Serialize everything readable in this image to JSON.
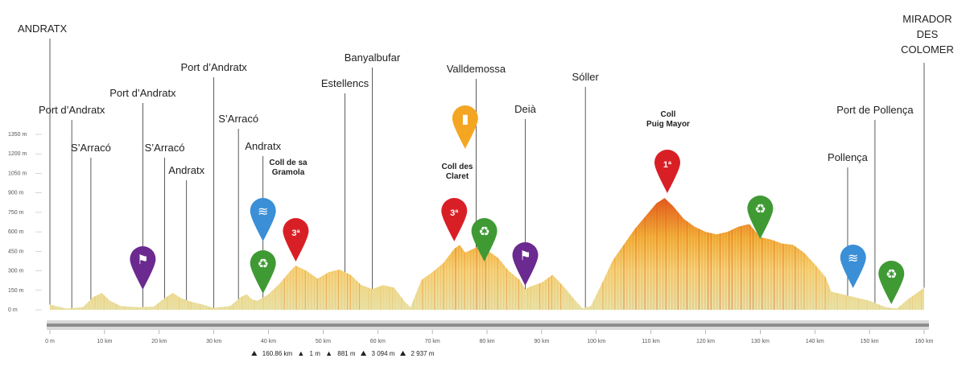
{
  "chart_data": {
    "type": "area",
    "x_unit": "km",
    "y_unit": "m",
    "xlim": [
      0,
      160
    ],
    "ylim": [
      0,
      1350
    ],
    "y_ticks": [
      "0 m",
      "150 m",
      "300 m",
      "450 m",
      "600 m",
      "750 m",
      "900 m",
      "1050 m",
      "1200 m",
      "1350 m"
    ],
    "x_ticks": [
      "0 m",
      "10 km",
      "20 km",
      "30 km",
      "40 km",
      "50 km",
      "60 km",
      "70 km",
      "80 km",
      "90 km",
      "100 km",
      "110 km",
      "120 km",
      "130 km",
      "140 km",
      "150 km",
      "160 km"
    ],
    "profile": [
      [
        0,
        40
      ],
      [
        3,
        10
      ],
      [
        6,
        20
      ],
      [
        8,
        100
      ],
      [
        9.5,
        130
      ],
      [
        11,
        70
      ],
      [
        13,
        30
      ],
      [
        16,
        20
      ],
      [
        19,
        25
      ],
      [
        21,
        90
      ],
      [
        22.5,
        130
      ],
      [
        24,
        90
      ],
      [
        26,
        60
      ],
      [
        28,
        40
      ],
      [
        30,
        15
      ],
      [
        33,
        30
      ],
      [
        35,
        100
      ],
      [
        36,
        120
      ],
      [
        37,
        80
      ],
      [
        38,
        70
      ],
      [
        40,
        120
      ],
      [
        42,
        200
      ],
      [
        44,
        300
      ],
      [
        45,
        340
      ],
      [
        47,
        300
      ],
      [
        49,
        240
      ],
      [
        51,
        290
      ],
      [
        53,
        310
      ],
      [
        55,
        270
      ],
      [
        57,
        190
      ],
      [
        59,
        160
      ],
      [
        61,
        190
      ],
      [
        63,
        170
      ],
      [
        65,
        60
      ],
      [
        66,
        20
      ],
      [
        68,
        230
      ],
      [
        70,
        290
      ],
      [
        72,
        360
      ],
      [
        74,
        470
      ],
      [
        75,
        500
      ],
      [
        76,
        440
      ],
      [
        78,
        480
      ],
      [
        80,
        460
      ],
      [
        82,
        400
      ],
      [
        84,
        300
      ],
      [
        86,
        230
      ],
      [
        87,
        160
      ],
      [
        88,
        180
      ],
      [
        90,
        210
      ],
      [
        92,
        270
      ],
      [
        94,
        180
      ],
      [
        96,
        80
      ],
      [
        97.5,
        10
      ],
      [
        99,
        30
      ],
      [
        101,
        200
      ],
      [
        103,
        380
      ],
      [
        105,
        500
      ],
      [
        107,
        620
      ],
      [
        109,
        720
      ],
      [
        111,
        820
      ],
      [
        112.5,
        860
      ],
      [
        114,
        800
      ],
      [
        116,
        700
      ],
      [
        118,
        640
      ],
      [
        120,
        600
      ],
      [
        122,
        580
      ],
      [
        124,
        600
      ],
      [
        126,
        640
      ],
      [
        128,
        660
      ],
      [
        130,
        560
      ],
      [
        132,
        540
      ],
      [
        134,
        510
      ],
      [
        136,
        500
      ],
      [
        138,
        440
      ],
      [
        140,
        350
      ],
      [
        142,
        250
      ],
      [
        143,
        140
      ],
      [
        145,
        120
      ],
      [
        147,
        100
      ],
      [
        150,
        70
      ],
      [
        153,
        20
      ],
      [
        155,
        10
      ],
      [
        157,
        80
      ],
      [
        160,
        170
      ]
    ],
    "places": [
      {
        "name": "ANDRATX",
        "km": 0
      },
      {
        "name": "Port d’Andratx",
        "km": 4
      },
      {
        "name": "S’Arracó",
        "km": 7.5
      },
      {
        "name": "Port d’Andratx",
        "km": 17
      },
      {
        "name": "S’Arracó",
        "km": 21
      },
      {
        "name": "Andratx",
        "km": 25
      },
      {
        "name": "Port d’Andratx",
        "km": 30
      },
      {
        "name": "S’Arracó",
        "km": 34.5
      },
      {
        "name": "Andratx",
        "km": 39
      },
      {
        "name": "Estellencs",
        "km": 54
      },
      {
        "name": "Banyalbufar",
        "km": 59
      },
      {
        "name": "Valldemossa",
        "km": 78
      },
      {
        "name": "Deià",
        "km": 87
      },
      {
        "name": "Sóller",
        "km": 98
      },
      {
        "name": "Pollença",
        "km": 146
      },
      {
        "name": "Port de Pollença",
        "km": 151
      },
      {
        "name": "MIRADOR DES COLOMER",
        "km": 160
      }
    ],
    "climbs": [
      {
        "name": "Coll de sa Gramola",
        "category": "3ª",
        "km": 45
      },
      {
        "name": "Coll des Claret",
        "category": "3ª",
        "km": 74
      },
      {
        "name": "Coll Puig Mayor",
        "category": "1ª",
        "km": 113
      }
    ],
    "markers": [
      {
        "type": "start-flag",
        "km": 17,
        "color": "#6b2a8f"
      },
      {
        "type": "start-flag",
        "km": 87,
        "color": "#6b2a8f"
      },
      {
        "type": "sprint",
        "km": 39,
        "color": "#3a8fd6"
      },
      {
        "type": "sprint",
        "km": 147,
        "color": "#3a8fd6"
      },
      {
        "type": "recycling-zone",
        "km": 39,
        "color": "#3f9a34"
      },
      {
        "type": "recycling-zone",
        "km": 78,
        "color": "#3f9a34"
      },
      {
        "type": "recycling-zone",
        "km": 130,
        "color": "#3f9a34"
      },
      {
        "type": "recycling-zone",
        "km": 154,
        "color": "#3f9a34"
      },
      {
        "type": "feed-zone",
        "km": 76,
        "color": "#f4a623"
      }
    ],
    "colors": {
      "low": "#e8e2a8",
      "mid": "#f2b23a",
      "high": "#e25a1c",
      "climb-marker": "#d91f26",
      "axis": "#888888"
    }
  },
  "stats": {
    "distance": "160.86 km",
    "climb1": "1 m",
    "climb2": "881 m",
    "elevation_gain": "3 094 m",
    "elevation_loss": "2 937 m"
  }
}
